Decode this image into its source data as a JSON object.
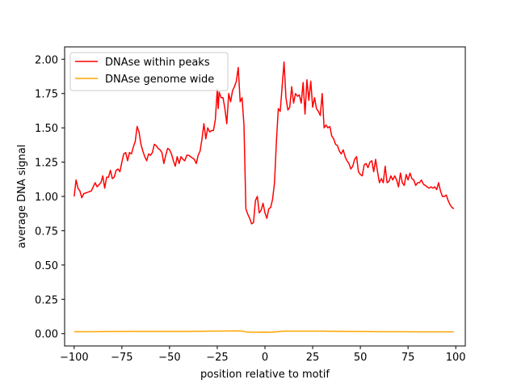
{
  "chart_data": {
    "type": "line",
    "xlabel": "position relative to motif",
    "ylabel": "average DNA signal",
    "xlim": [
      -105,
      105
    ],
    "ylim": [
      -0.09,
      2.09
    ],
    "x_ticks": [
      -100,
      -75,
      -50,
      -25,
      0,
      25,
      50,
      75,
      100
    ],
    "x_tick_labels": [
      "−100",
      "−75",
      "−50",
      "−25",
      "0",
      "25",
      "50",
      "75",
      "100"
    ],
    "y_ticks": [
      0.0,
      0.25,
      0.5,
      0.75,
      1.0,
      1.25,
      1.5,
      1.75,
      2.0
    ],
    "y_tick_labels": [
      "0.00",
      "0.25",
      "0.50",
      "0.75",
      "1.00",
      "1.25",
      "1.50",
      "1.75",
      "2.00"
    ],
    "grid": false,
    "legend_position": "top-left",
    "series": [
      {
        "name": "DNAse within peaks",
        "color": "#ff0000",
        "points": [
          [
            -100,
            1.0
          ],
          [
            -99,
            1.12
          ],
          [
            -98,
            1.06
          ],
          [
            -97,
            1.04
          ],
          [
            -96,
            0.99
          ],
          [
            -95,
            1.02
          ],
          [
            -93,
            1.03
          ],
          [
            -91,
            1.04
          ],
          [
            -90,
            1.07
          ],
          [
            -89,
            1.1
          ],
          [
            -88,
            1.07
          ],
          [
            -86,
            1.1
          ],
          [
            -85,
            1.15
          ],
          [
            -84,
            1.06
          ],
          [
            -83,
            1.14
          ],
          [
            -82,
            1.14
          ],
          [
            -81,
            1.19
          ],
          [
            -80,
            1.13
          ],
          [
            -79,
            1.14
          ],
          [
            -78,
            1.19
          ],
          [
            -77,
            1.2
          ],
          [
            -76,
            1.18
          ],
          [
            -75,
            1.25
          ],
          [
            -74,
            1.31
          ],
          [
            -73,
            1.32
          ],
          [
            -72,
            1.26
          ],
          [
            -71,
            1.32
          ],
          [
            -70,
            1.31
          ],
          [
            -69,
            1.36
          ],
          [
            -68,
            1.4
          ],
          [
            -67,
            1.51
          ],
          [
            -66,
            1.47
          ],
          [
            -65,
            1.38
          ],
          [
            -64,
            1.33
          ],
          [
            -63,
            1.29
          ],
          [
            -62,
            1.26
          ],
          [
            -61,
            1.31
          ],
          [
            -60,
            1.3
          ],
          [
            -59,
            1.32
          ],
          [
            -58,
            1.38
          ],
          [
            -57,
            1.37
          ],
          [
            -56,
            1.35
          ],
          [
            -55,
            1.34
          ],
          [
            -54,
            1.32
          ],
          [
            -53,
            1.24
          ],
          [
            -52,
            1.3
          ],
          [
            -51,
            1.35
          ],
          [
            -50,
            1.34
          ],
          [
            -49,
            1.31
          ],
          [
            -48,
            1.26
          ],
          [
            -47,
            1.22
          ],
          [
            -46,
            1.29
          ],
          [
            -45,
            1.24
          ],
          [
            -44,
            1.29
          ],
          [
            -43,
            1.27
          ],
          [
            -42,
            1.26
          ],
          [
            -41,
            1.3
          ],
          [
            -40,
            1.3
          ],
          [
            -39,
            1.29
          ],
          [
            -38,
            1.28
          ],
          [
            -37,
            1.27
          ],
          [
            -36,
            1.24
          ],
          [
            -35,
            1.3
          ],
          [
            -34,
            1.33
          ],
          [
            -33,
            1.42
          ],
          [
            -32,
            1.53
          ],
          [
            -31,
            1.42
          ],
          [
            -30,
            1.5
          ],
          [
            -29,
            1.47
          ],
          [
            -28,
            1.48
          ],
          [
            -27,
            1.48
          ],
          [
            -26,
            1.56
          ],
          [
            -25,
            1.78
          ],
          [
            -24.5,
            1.64
          ],
          [
            -24,
            1.76
          ],
          [
            -23,
            1.72
          ],
          [
            -22,
            1.72
          ],
          [
            -21,
            1.64
          ],
          [
            -20,
            1.53
          ],
          [
            -19,
            1.75
          ],
          [
            -18,
            1.69
          ],
          [
            -17,
            1.77
          ],
          [
            -16,
            1.8
          ],
          [
            -15,
            1.84
          ],
          [
            -14,
            1.94
          ],
          [
            -13,
            1.69
          ],
          [
            -12,
            1.72
          ],
          [
            -11,
            1.52
          ],
          [
            -10,
            0.91
          ],
          [
            -9,
            0.87
          ],
          [
            -8,
            0.84
          ],
          [
            -7,
            0.8
          ],
          [
            -6,
            0.81
          ],
          [
            -5,
            0.97
          ],
          [
            -4,
            1.0
          ],
          [
            -3,
            0.88
          ],
          [
            -2,
            0.9
          ],
          [
            -1,
            0.95
          ],
          [
            0,
            0.88
          ],
          [
            1,
            0.84
          ],
          [
            2,
            0.91
          ],
          [
            3,
            0.92
          ],
          [
            4,
            0.98
          ],
          [
            5,
            1.1
          ],
          [
            6,
            1.4
          ],
          [
            7,
            1.64
          ],
          [
            8,
            1.62
          ],
          [
            9,
            1.8
          ],
          [
            10,
            1.98
          ],
          [
            11,
            1.72
          ],
          [
            12,
            1.63
          ],
          [
            13,
            1.65
          ],
          [
            14,
            1.8
          ],
          [
            15,
            1.68
          ],
          [
            16,
            1.75
          ],
          [
            17,
            1.73
          ],
          [
            18,
            1.74
          ],
          [
            19,
            1.68
          ],
          [
            20,
            1.83
          ],
          [
            21,
            1.6
          ],
          [
            22,
            1.85
          ],
          [
            23,
            1.7
          ],
          [
            24,
            1.84
          ],
          [
            25,
            1.65
          ],
          [
            26,
            1.72
          ],
          [
            27,
            1.64
          ],
          [
            28,
            1.62
          ],
          [
            29,
            1.59
          ],
          [
            30,
            1.75
          ],
          [
            31,
            1.5
          ],
          [
            32,
            1.52
          ],
          [
            33,
            1.5
          ],
          [
            34,
            1.51
          ],
          [
            35,
            1.44
          ],
          [
            36,
            1.42
          ],
          [
            37,
            1.38
          ],
          [
            38,
            1.37
          ],
          [
            39,
            1.33
          ],
          [
            40,
            1.31
          ],
          [
            41,
            1.34
          ],
          [
            42,
            1.29
          ],
          [
            43,
            1.26
          ],
          [
            44,
            1.24
          ],
          [
            45,
            1.2
          ],
          [
            46,
            1.22
          ],
          [
            47,
            1.27
          ],
          [
            48,
            1.29
          ],
          [
            49,
            1.18
          ],
          [
            50,
            1.16
          ],
          [
            51,
            1.15
          ],
          [
            52,
            1.23
          ],
          [
            53,
            1.24
          ],
          [
            54,
            1.21
          ],
          [
            55,
            1.25
          ],
          [
            56,
            1.26
          ],
          [
            57,
            1.18
          ],
          [
            58,
            1.27
          ],
          [
            59,
            1.18
          ],
          [
            60,
            1.1
          ],
          [
            61,
            1.13
          ],
          [
            62,
            1.1
          ],
          [
            63,
            1.22
          ],
          [
            64,
            1.1
          ],
          [
            65,
            1.11
          ],
          [
            66,
            1.15
          ],
          [
            67,
            1.12
          ],
          [
            68,
            1.15
          ],
          [
            69,
            1.12
          ],
          [
            70,
            1.07
          ],
          [
            71,
            1.17
          ],
          [
            72,
            1.1
          ],
          [
            73,
            1.08
          ],
          [
            74,
            1.16
          ],
          [
            75,
            1.12
          ],
          [
            76,
            1.17
          ],
          [
            77,
            1.13
          ],
          [
            78,
            1.12
          ],
          [
            79,
            1.08
          ],
          [
            80,
            1.1
          ],
          [
            81,
            1.1
          ],
          [
            82,
            1.12
          ],
          [
            83,
            1.09
          ],
          [
            84,
            1.08
          ],
          [
            85,
            1.07
          ],
          [
            86,
            1.06
          ],
          [
            87,
            1.07
          ],
          [
            88,
            1.06
          ],
          [
            89,
            1.07
          ],
          [
            90,
            1.05
          ],
          [
            91,
            1.1
          ],
          [
            92,
            1.04
          ],
          [
            93,
            1.0
          ],
          [
            94,
            1.0
          ],
          [
            95,
            1.01
          ],
          [
            96,
            0.97
          ],
          [
            97,
            0.94
          ],
          [
            98,
            0.92
          ],
          [
            99,
            0.91
          ]
        ]
      },
      {
        "name": "DNAse genome wide",
        "color": "#ffa500",
        "points": [
          [
            -100,
            0.014
          ],
          [
            -90,
            0.014
          ],
          [
            -80,
            0.015
          ],
          [
            -70,
            0.016
          ],
          [
            -60,
            0.016
          ],
          [
            -50,
            0.016
          ],
          [
            -40,
            0.016
          ],
          [
            -30,
            0.018
          ],
          [
            -20,
            0.019
          ],
          [
            -14,
            0.02
          ],
          [
            -12,
            0.019
          ],
          [
            -10,
            0.012
          ],
          [
            -5,
            0.01
          ],
          [
            0,
            0.011
          ],
          [
            3,
            0.01
          ],
          [
            6,
            0.013
          ],
          [
            10,
            0.018
          ],
          [
            20,
            0.018
          ],
          [
            30,
            0.018
          ],
          [
            40,
            0.016
          ],
          [
            50,
            0.015
          ],
          [
            60,
            0.014
          ],
          [
            70,
            0.014
          ],
          [
            80,
            0.013
          ],
          [
            90,
            0.013
          ],
          [
            99,
            0.013
          ]
        ]
      }
    ]
  }
}
